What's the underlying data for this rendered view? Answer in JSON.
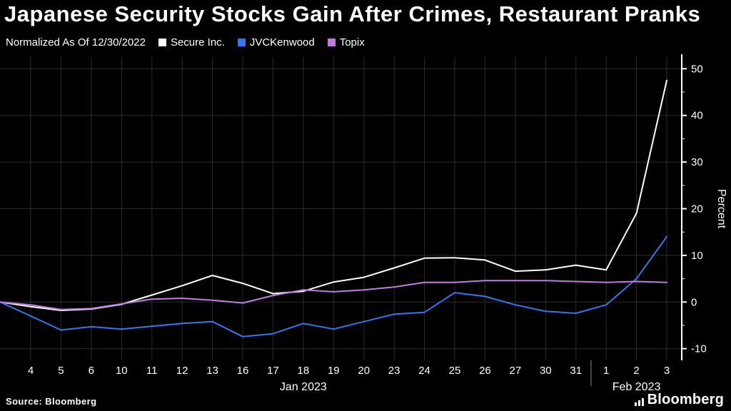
{
  "header": {
    "title": "Japanese Security Stocks Gain After Crimes, Restaurant Pranks",
    "note": "Normalized As Of 12/30/2022"
  },
  "legend": {
    "items": [
      {
        "label": "Secure Inc.",
        "color": "#ffffff"
      },
      {
        "label": "JVCKenwood",
        "color": "#3577f0"
      },
      {
        "label": "Topix",
        "color": "#c07ce0"
      }
    ]
  },
  "chart_data": {
    "type": "line",
    "title": "Japanese Security Stocks Gain After Crimes, Restaurant Pranks",
    "note": "Normalized As Of 12/30/2022",
    "ylabel": "Percent",
    "ylim": [
      -12.5,
      52.5
    ],
    "yticks": [
      -10,
      0,
      10,
      20,
      30,
      40,
      50
    ],
    "grid": true,
    "legend_position": "top",
    "x_start": "12/30/2022",
    "x_tick_labels": [
      "4",
      "5",
      "6",
      "10",
      "11",
      "12",
      "13",
      "16",
      "17",
      "18",
      "19",
      "20",
      "23",
      "24",
      "25",
      "26",
      "27",
      "30",
      "31",
      "1",
      "2",
      "3"
    ],
    "month_groups": [
      {
        "label": "Jan 2023",
        "tick_span": [
          0,
          18
        ]
      },
      {
        "label": "Feb 2023",
        "tick_span": [
          19,
          21
        ]
      }
    ],
    "series": [
      {
        "name": "Secure Inc.",
        "color": "#ffffff",
        "values": [
          0,
          -1,
          -1.8,
          -1.5,
          -0.5,
          1.5,
          3.5,
          5.7,
          4,
          1.8,
          2.3,
          4.3,
          5.3,
          7.3,
          9.4,
          9.5,
          9,
          6.6,
          6.9,
          7.9,
          6.9,
          19,
          47.5
        ]
      },
      {
        "name": "JVCKenwood",
        "color": "#3577f0",
        "values": [
          0,
          -3,
          -6,
          -5.3,
          -5.8,
          -5.2,
          -4.6,
          -4.2,
          -7.4,
          -6.8,
          -4.6,
          -5.8,
          -4.2,
          -2.6,
          -2.2,
          2,
          1.2,
          -0.6,
          -2,
          -2.4,
          -0.6,
          5,
          14
        ]
      },
      {
        "name": "Topix",
        "color": "#c07ce0",
        "values": [
          0,
          -0.6,
          -1.6,
          -1.4,
          -0.4,
          0.6,
          0.8,
          0.4,
          -0.2,
          1.4,
          2.6,
          2.2,
          2.6,
          3.2,
          4.2,
          4.2,
          4.6,
          4.6,
          4.6,
          4.4,
          4.2,
          4.4,
          4.2
        ]
      }
    ],
    "colors": {
      "grid": "#2c2c2c",
      "axis": "#ffffff",
      "separator": "#888888"
    }
  },
  "footer": {
    "source": "Source: Bloomberg",
    "brand": "Bloomberg"
  }
}
